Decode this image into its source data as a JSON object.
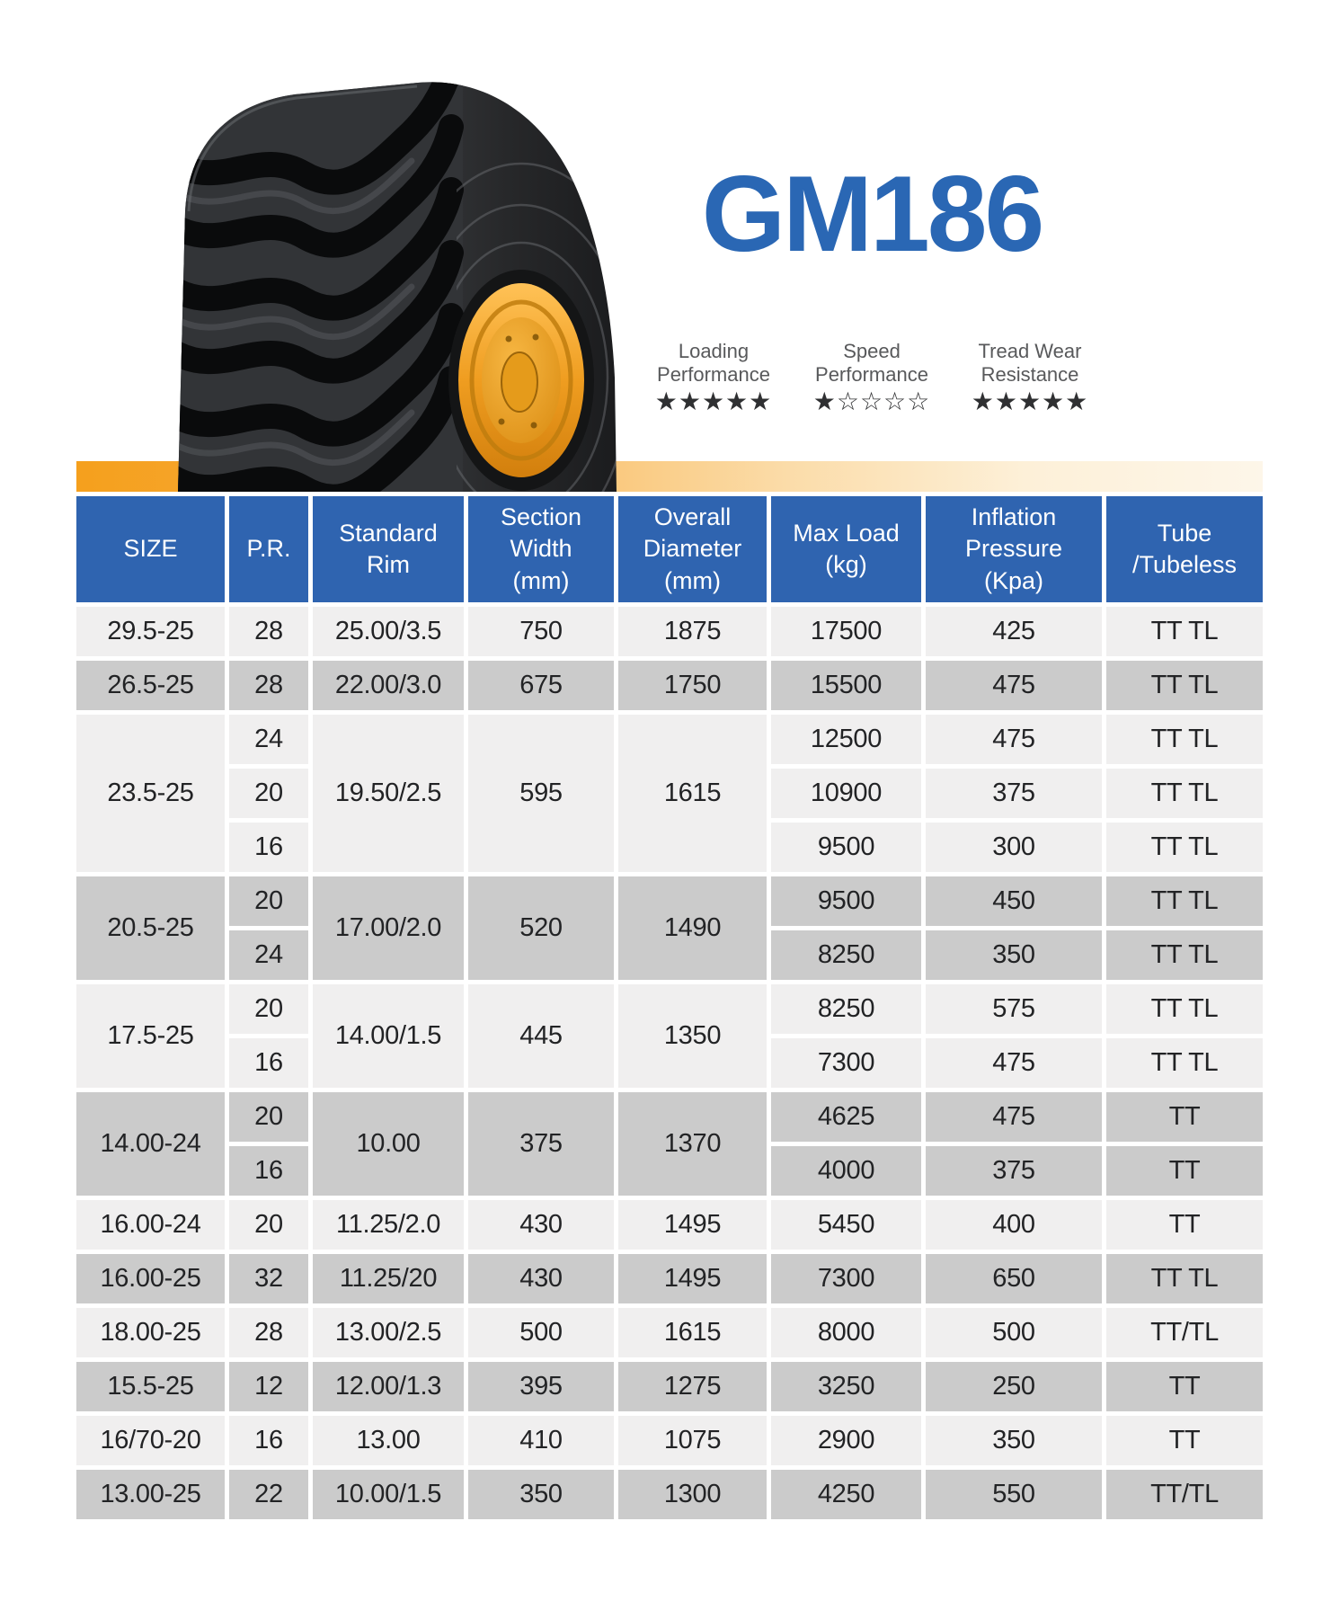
{
  "product": {
    "name": "GM186"
  },
  "ratings": [
    {
      "label": "Loading\nPerformance",
      "stars": 5
    },
    {
      "label": "Speed\nPerformance",
      "stars": 1
    },
    {
      "label": "Tread Wear\nResistance",
      "stars": 5
    }
  ],
  "icons": {
    "star_filled": "★",
    "star_empty": "☆",
    "tire_image": "tire-photo"
  },
  "colors": {
    "accent": "#2A67B4",
    "header_bg": "#2F64B0",
    "band_orange": "#F5A01D",
    "row_light": "#F0EFEF",
    "row_dark": "#CBCBCB",
    "star_color": "#2F3032",
    "rim_orange": "#F2A127"
  },
  "table": {
    "headers": [
      "SIZE",
      "P.R.",
      "Standard\nRim",
      "Section\nWidth\n(mm)",
      "Overall\nDiameter\n(mm)",
      "Max Load\n(kg)",
      "Inflation\nPressure\n(Kpa)",
      "Tube\n/Tubeless"
    ],
    "groups": [
      {
        "size": "29.5-25",
        "shade": "light",
        "rim": "25.00/3.5",
        "section_width": "750",
        "overall_diameter": "1875",
        "rows": [
          {
            "pr": "28",
            "max_load": "17500",
            "inflation_pressure": "425",
            "tube": "TT TL"
          }
        ]
      },
      {
        "size": "26.5-25",
        "shade": "dark",
        "rim": "22.00/3.0",
        "section_width": "675",
        "overall_diameter": "1750",
        "rows": [
          {
            "pr": "28",
            "max_load": "15500",
            "inflation_pressure": "475",
            "tube": "TT TL"
          }
        ]
      },
      {
        "size": "23.5-25",
        "shade": "light",
        "rim": "19.50/2.5",
        "section_width": "595",
        "overall_diameter": "1615",
        "rows": [
          {
            "pr": "24",
            "max_load": "12500",
            "inflation_pressure": "475",
            "tube": "TT TL"
          },
          {
            "pr": "20",
            "max_load": "10900",
            "inflation_pressure": "375",
            "tube": "TT TL"
          },
          {
            "pr": "16",
            "max_load": "9500",
            "inflation_pressure": "300",
            "tube": "TT TL"
          }
        ]
      },
      {
        "size": "20.5-25",
        "shade": "dark",
        "rim": "17.00/2.0",
        "section_width": "520",
        "overall_diameter": "1490",
        "rows": [
          {
            "pr": "20",
            "max_load": "9500",
            "inflation_pressure": "450",
            "tube": "TT TL"
          },
          {
            "pr": "24",
            "max_load": "8250",
            "inflation_pressure": "350",
            "tube": "TT TL"
          }
        ]
      },
      {
        "size": "17.5-25",
        "shade": "light",
        "rim": "14.00/1.5",
        "section_width": "445",
        "overall_diameter": "1350",
        "rows": [
          {
            "pr": "20",
            "max_load": "8250",
            "inflation_pressure": "575",
            "tube": "TT TL"
          },
          {
            "pr": "16",
            "max_load": "7300",
            "inflation_pressure": "475",
            "tube": "TT TL"
          }
        ]
      },
      {
        "size": "14.00-24",
        "shade": "dark",
        "rim": "10.00",
        "section_width": "375",
        "overall_diameter": "1370",
        "rows": [
          {
            "pr": "20",
            "max_load": "4625",
            "inflation_pressure": "475",
            "tube": "TT"
          },
          {
            "pr": "16",
            "max_load": "4000",
            "inflation_pressure": "375",
            "tube": "TT"
          }
        ]
      },
      {
        "size": "16.00-24",
        "shade": "light",
        "rim": "11.25/2.0",
        "section_width": "430",
        "overall_diameter": "1495",
        "rows": [
          {
            "pr": "20",
            "max_load": "5450",
            "inflation_pressure": "400",
            "tube": "TT"
          }
        ]
      },
      {
        "size": "16.00-25",
        "shade": "dark",
        "rim": "11.25/20",
        "section_width": "430",
        "overall_diameter": "1495",
        "rows": [
          {
            "pr": "32",
            "max_load": "7300",
            "inflation_pressure": "650",
            "tube": "TT TL"
          }
        ]
      },
      {
        "size": "18.00-25",
        "shade": "light",
        "rim": "13.00/2.5",
        "section_width": "500",
        "overall_diameter": "1615",
        "rows": [
          {
            "pr": "28",
            "max_load": "8000",
            "inflation_pressure": "500",
            "tube": "TT/TL"
          }
        ]
      },
      {
        "size": "15.5-25",
        "shade": "dark",
        "rim": "12.00/1.3",
        "section_width": "395",
        "overall_diameter": "1275",
        "rows": [
          {
            "pr": "12",
            "max_load": "3250",
            "inflation_pressure": "250",
            "tube": "TT"
          }
        ]
      },
      {
        "size": "16/70-20",
        "shade": "light",
        "rim": "13.00",
        "section_width": "410",
        "overall_diameter": "1075",
        "rows": [
          {
            "pr": "16",
            "max_load": "2900",
            "inflation_pressure": "350",
            "tube": "TT"
          }
        ]
      },
      {
        "size": "13.00-25",
        "shade": "dark",
        "rim": "10.00/1.5",
        "section_width": "350",
        "overall_diameter": "1300",
        "rows": [
          {
            "pr": "22",
            "max_load": "4250",
            "inflation_pressure": "550",
            "tube": "TT/TL"
          }
        ]
      }
    ]
  }
}
